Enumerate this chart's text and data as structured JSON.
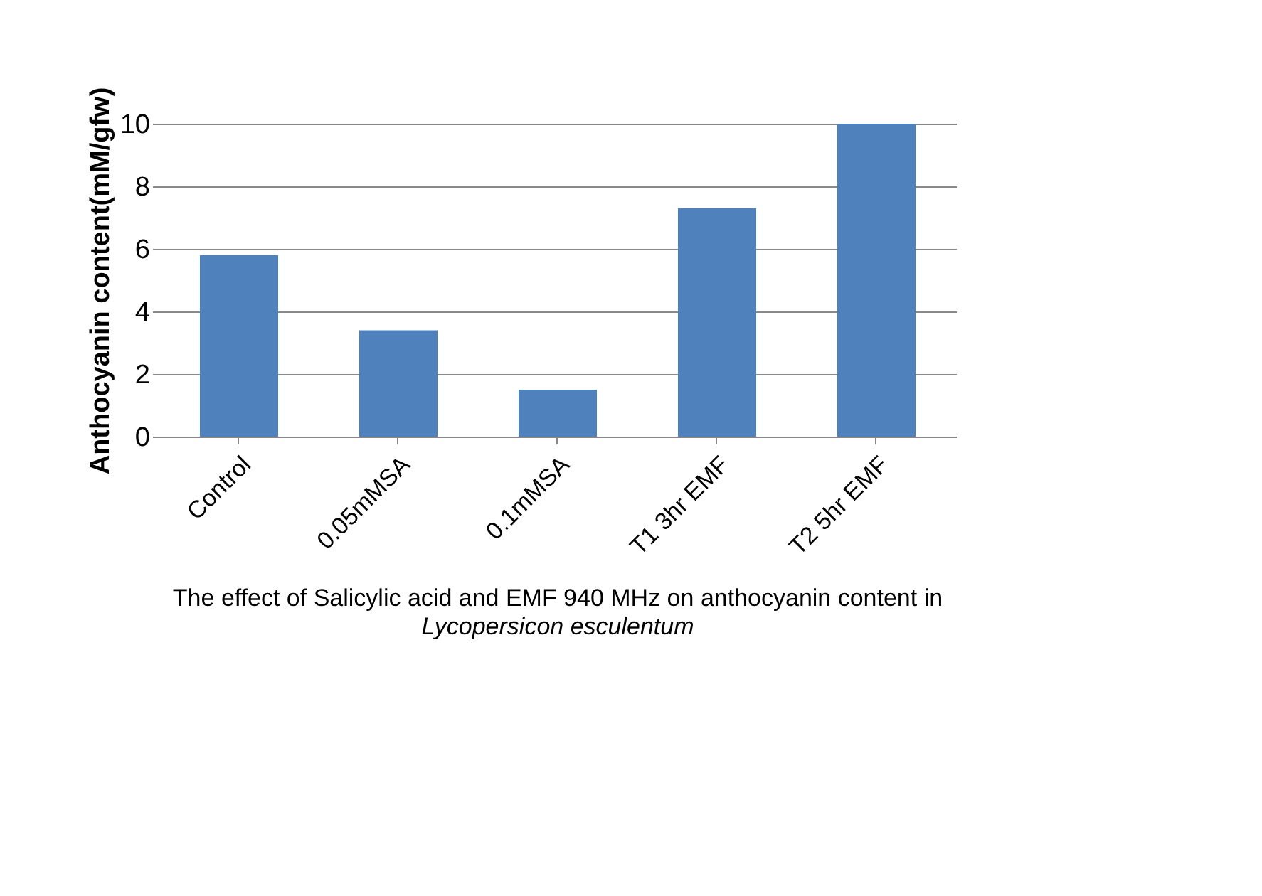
{
  "chart_data": {
    "type": "bar",
    "title": "The effect of Salicylic acid and EMF 940 MHz on anthocyanin content in",
    "subtitle": "Lycopersicon esculentum",
    "ylabel": "Anthocyanin content(mM/gfw)",
    "categories": [
      "Control",
      "0.05mMSA",
      "0.1mMSA",
      "T1 3hr EMF",
      "T2 5hr EMF"
    ],
    "values": [
      5.8,
      3.4,
      1.5,
      7.3,
      10.0
    ],
    "color": "#4f81bd",
    "ylim": [
      0,
      10
    ],
    "yticks": [
      0,
      2,
      4,
      6,
      8,
      10
    ],
    "grid": "y"
  }
}
